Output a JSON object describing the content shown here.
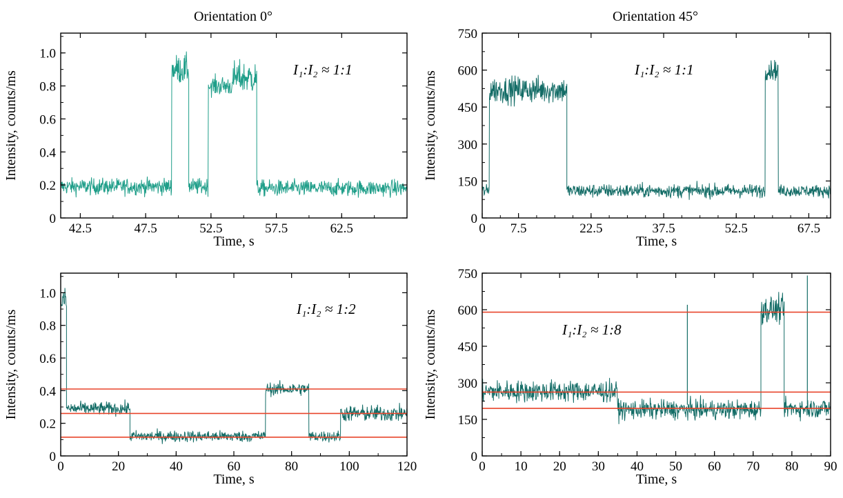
{
  "columns": [
    "Orientation 0°",
    "Orientation 45°"
  ],
  "chart_data": [
    {
      "type": "line",
      "id": "A",
      "xlabel": "Time, s",
      "ylabel": "Intensity, counts/ms",
      "xlim": [
        41,
        67.5
      ],
      "ylim": [
        0,
        1.12
      ],
      "xticks": [
        42.5,
        47.5,
        52.5,
        57.5,
        62.5
      ],
      "xtick_labels": [
        "42.5",
        "47.5",
        "52.5",
        "57.5",
        "62.5"
      ],
      "yticks": [
        0,
        0.2,
        0.4,
        0.6,
        0.8,
        1.0
      ],
      "ytick_labels": [
        "0",
        "0.2",
        "0.4",
        "0.6",
        "0.8",
        "1.0"
      ],
      "annotation": "I₁:I₂ ≈ 1:1",
      "trace_color": "#1f9e89",
      "levels": [
        {
          "x": [
            41,
            49.5
          ],
          "y": 0.19,
          "noise": 0.05
        },
        {
          "x": [
            49.5,
            50.8
          ],
          "y": 0.9,
          "noise": 0.09
        },
        {
          "x": [
            50.8,
            52.3
          ],
          "y": 0.19,
          "noise": 0.05
        },
        {
          "x": [
            52.3,
            54.2
          ],
          "y": 0.8,
          "noise": 0.06
        },
        {
          "x": [
            54.2,
            56.0
          ],
          "y": 0.85,
          "noise": 0.1
        },
        {
          "x": [
            56.0,
            67.5
          ],
          "y": 0.18,
          "noise": 0.05
        }
      ],
      "hlines": []
    },
    {
      "type": "line",
      "id": "B",
      "xlabel": "Time, s",
      "ylabel": "Intensity, counts/ms",
      "xlim": [
        0,
        72
      ],
      "ylim": [
        0,
        750
      ],
      "xticks": [
        0,
        7.5,
        22.5,
        37.5,
        52.5,
        67.5
      ],
      "xtick_labels": [
        "0",
        "7.5",
        "22.5",
        "37.5",
        "52.5",
        "67.5"
      ],
      "yticks": [
        0,
        150,
        300,
        450,
        600,
        750
      ],
      "ytick_labels": [
        "0",
        "150",
        "300",
        "450",
        "600",
        "750"
      ],
      "annotation": "I₁:I₂ ≈ 1:1",
      "trace_color": "#136c66",
      "levels": [
        {
          "x": [
            0,
            1.5
          ],
          "y": 110,
          "noise": 25
        },
        {
          "x": [
            1.5,
            17.5
          ],
          "y": 520,
          "noise": 55
        },
        {
          "x": [
            17.5,
            58.5
          ],
          "y": 110,
          "noise": 28
        },
        {
          "x": [
            58.5,
            61.2
          ],
          "y": 600,
          "noise": 40
        },
        {
          "x": [
            61.2,
            72
          ],
          "y": 110,
          "noise": 25
        }
      ],
      "hlines": []
    },
    {
      "type": "line",
      "id": "C",
      "xlabel": "Time, s",
      "ylabel": "Intensity, counts/ms",
      "xlim": [
        0,
        120
      ],
      "ylim": [
        0,
        1.12
      ],
      "xticks": [
        0,
        20,
        40,
        60,
        80,
        100,
        120
      ],
      "xtick_labels": [
        "0",
        "20",
        "40",
        "60",
        "80",
        "100",
        "120"
      ],
      "yticks": [
        0,
        0.2,
        0.4,
        0.6,
        0.8,
        1.0
      ],
      "ytick_labels": [
        "0",
        "0.2",
        "0.4",
        "0.6",
        "0.8",
        "1.0"
      ],
      "annotation": "I₁:I₂ ≈ 1:2",
      "trace_color": "#136c66",
      "levels": [
        {
          "x": [
            0,
            2
          ],
          "y": 0.95,
          "noise": 0.08
        },
        {
          "x": [
            2,
            24
          ],
          "y": 0.29,
          "noise": 0.04
        },
        {
          "x": [
            24,
            71
          ],
          "y": 0.12,
          "noise": 0.035
        },
        {
          "x": [
            71,
            86
          ],
          "y": 0.41,
          "noise": 0.04
        },
        {
          "x": [
            86,
            97
          ],
          "y": 0.12,
          "noise": 0.035
        },
        {
          "x": [
            97,
            120
          ],
          "y": 0.26,
          "noise": 0.05
        }
      ],
      "hlines": [
        0.41,
        0.26,
        0.115
      ],
      "hline_color": "#e8442a"
    },
    {
      "type": "line",
      "id": "D",
      "xlabel": "Time, s",
      "ylabel": "Intensity, counts/ms",
      "xlim": [
        0,
        90
      ],
      "ylim": [
        0,
        750
      ],
      "xticks": [
        0,
        10,
        20,
        30,
        40,
        50,
        60,
        70,
        80,
        90
      ],
      "xtick_labels": [
        "0",
        "10",
        "20",
        "30",
        "40",
        "50",
        "60",
        "70",
        "80",
        "90"
      ],
      "yticks": [
        0,
        150,
        300,
        450,
        600,
        750
      ],
      "ytick_labels": [
        "0",
        "150",
        "300",
        "450",
        "600",
        "750"
      ],
      "annotation": "I₁:I₂ ≈ 1:8",
      "trace_color": "#136c66",
      "levels": [
        {
          "x": [
            0,
            35
          ],
          "y": 265,
          "noise": 45
        },
        {
          "x": [
            35,
            72
          ],
          "y": 190,
          "noise": 40
        },
        {
          "x": [
            72,
            78
          ],
          "y": 600,
          "noise": 55
        },
        {
          "x": [
            78,
            90
          ],
          "y": 195,
          "noise": 40
        }
      ],
      "spikes": [
        {
          "x": 53,
          "y": 620
        },
        {
          "x": 84,
          "y": 740
        }
      ],
      "hlines": [
        590,
        262,
        195
      ],
      "hline_color": "#e8442a"
    }
  ]
}
